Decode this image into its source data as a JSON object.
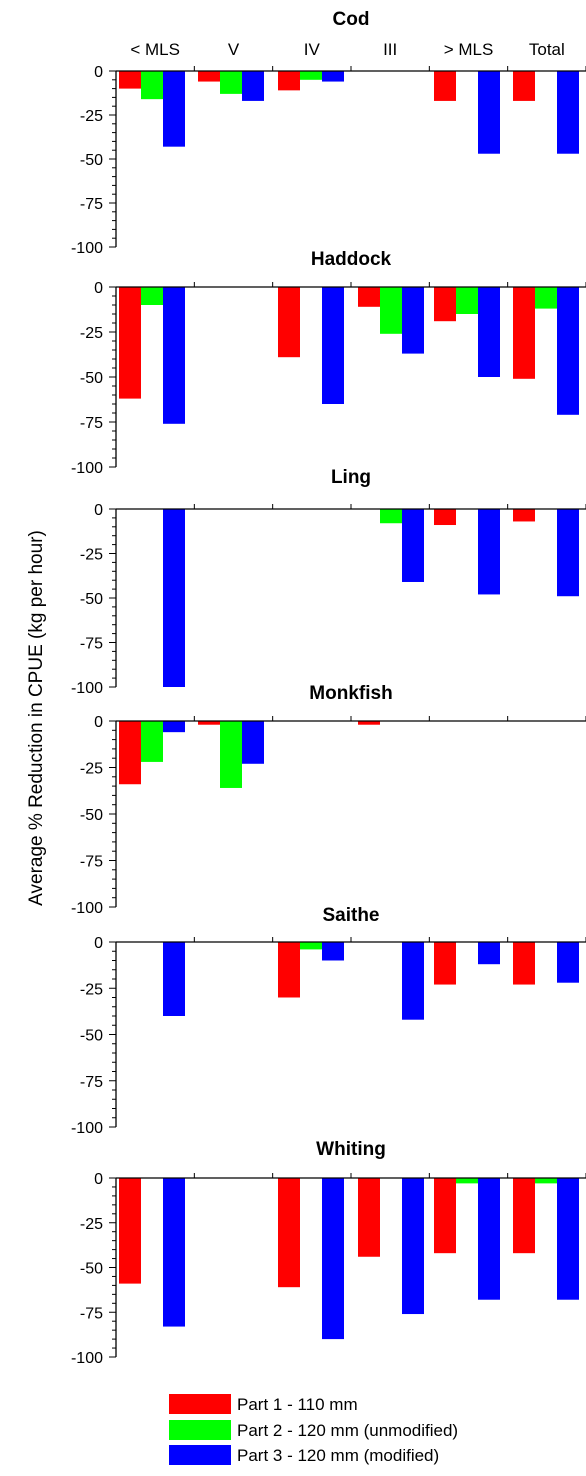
{
  "chart_data": {
    "type": "bar",
    "ylabel": "Average % Reduction in CPUE (kg per hour)",
    "ylim": [
      -100,
      0
    ],
    "yticks": [
      0,
      -25,
      -50,
      -75,
      -100
    ],
    "categories": [
      "< MLS",
      "V",
      "IV",
      "III",
      "> MLS",
      "Total"
    ],
    "legend": {
      "placement": "bottom",
      "entries": [
        {
          "name": "Part 1 - 110 mm",
          "color": "#ff0000"
        },
        {
          "name": "Part 2 - 120 mm (unmodified)",
          "color": "#00ff00"
        },
        {
          "name": "Part 3 - 120 mm (modified)",
          "color": "#0000ff"
        }
      ]
    },
    "panels": [
      {
        "title": "Cod",
        "series": [
          {
            "name": "Part 1 - 110 mm",
            "values": [
              -10,
              -6,
              -11,
              null,
              -17,
              -17
            ]
          },
          {
            "name": "Part 2 - 120 mm (unmodified)",
            "values": [
              -16,
              -13,
              -5,
              null,
              null,
              null
            ]
          },
          {
            "name": "Part 3 - 120 mm (modified)",
            "values": [
              -43,
              -17,
              -6,
              null,
              -47,
              -47
            ]
          }
        ]
      },
      {
        "title": "Haddock",
        "series": [
          {
            "name": "Part 1 - 110 mm",
            "values": [
              -62,
              null,
              -39,
              -11,
              -19,
              -51
            ]
          },
          {
            "name": "Part 2 - 120 mm (unmodified)",
            "values": [
              -10,
              null,
              null,
              -26,
              -15,
              -12
            ]
          },
          {
            "name": "Part 3 - 120 mm (modified)",
            "values": [
              -76,
              null,
              -65,
              -37,
              -50,
              -71
            ]
          }
        ]
      },
      {
        "title": "Ling",
        "series": [
          {
            "name": "Part 1 - 110 mm",
            "values": [
              null,
              null,
              null,
              null,
              -9,
              -7
            ]
          },
          {
            "name": "Part 2 - 120 mm (unmodified)",
            "values": [
              null,
              null,
              null,
              -8,
              null,
              null
            ]
          },
          {
            "name": "Part 3 - 120 mm (modified)",
            "values": [
              -100,
              null,
              null,
              -41,
              -48,
              -49
            ]
          }
        ]
      },
      {
        "title": "Monkfish",
        "series": [
          {
            "name": "Part 1 - 110 mm",
            "values": [
              -34,
              -2,
              null,
              -2,
              null,
              null
            ]
          },
          {
            "name": "Part 2 - 120 mm (unmodified)",
            "values": [
              -22,
              -36,
              null,
              null,
              null,
              null
            ]
          },
          {
            "name": "Part 3 - 120 mm (modified)",
            "values": [
              -6,
              -23,
              null,
              null,
              null,
              null
            ]
          }
        ]
      },
      {
        "title": "Saithe",
        "series": [
          {
            "name": "Part 1 - 110 mm",
            "values": [
              null,
              null,
              -30,
              null,
              -23,
              -23
            ]
          },
          {
            "name": "Part 2 - 120 mm (unmodified)",
            "values": [
              null,
              null,
              -4,
              null,
              null,
              null
            ]
          },
          {
            "name": "Part 3 - 120 mm (modified)",
            "values": [
              -40,
              null,
              -10,
              -42,
              -12,
              -22
            ]
          }
        ]
      },
      {
        "title": "Whiting",
        "series": [
          {
            "name": "Part 1 - 110 mm",
            "values": [
              -59,
              null,
              -61,
              -44,
              -42,
              -42
            ]
          },
          {
            "name": "Part 2 - 120 mm (unmodified)",
            "values": [
              null,
              null,
              null,
              null,
              -3,
              -3
            ]
          },
          {
            "name": "Part 3 - 120 mm (modified)",
            "values": [
              -83,
              null,
              -90,
              -76,
              -68,
              -68
            ]
          }
        ]
      }
    ]
  }
}
